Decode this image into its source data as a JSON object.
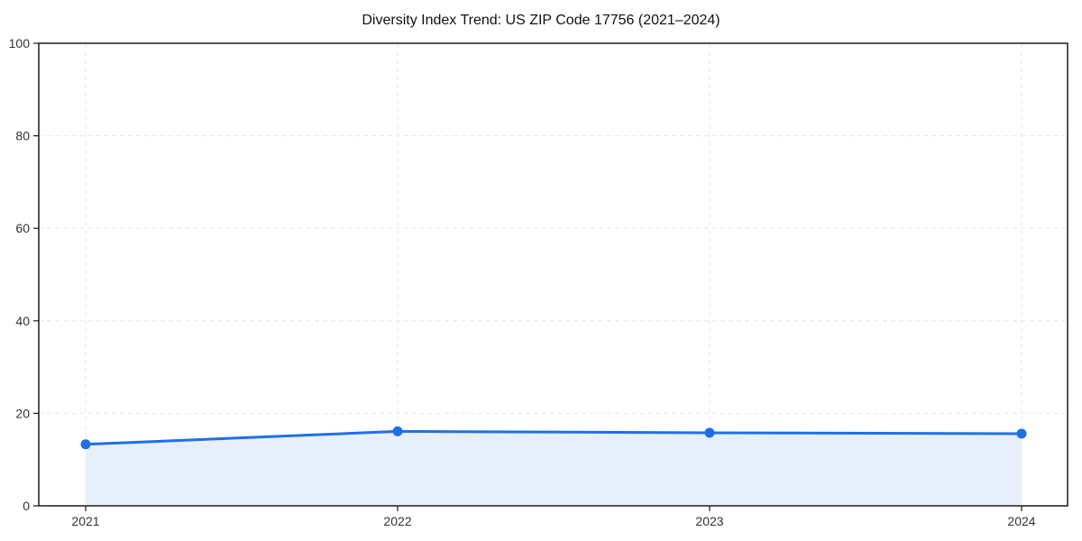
{
  "chart_data": {
    "type": "area",
    "title": "Diversity Index Trend: US ZIP Code 17756 (2021–2024)",
    "series_name": "Diversity Index",
    "categories": [
      "2021",
      "2022",
      "2023",
      "2024"
    ],
    "values": [
      13.3,
      16.1,
      15.8,
      15.6
    ],
    "xlabel": "",
    "ylabel": "",
    "ylim": [
      0,
      100
    ],
    "yticks": [
      0,
      20,
      40,
      60,
      80,
      100
    ],
    "grid": true,
    "grid_style": "dashed",
    "legend": false,
    "line_color": "#1f6fe8",
    "marker_color": "#1f6fe8",
    "fill_color": "#e8effc",
    "grid_color": "#e7e7e7",
    "border_color": "#1c1c1c",
    "tick_label_color": "#333333"
  }
}
